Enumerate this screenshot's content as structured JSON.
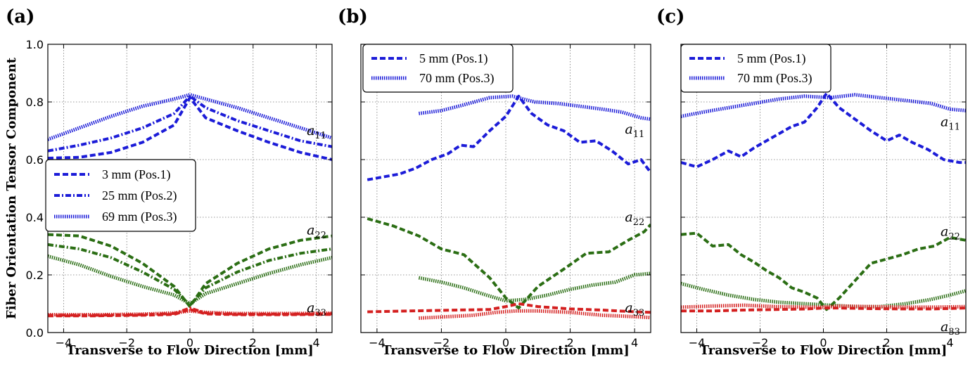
{
  "chart_data": [
    {
      "type": "line",
      "panel_label": "(a)",
      "xlabel": "Transverse to Flow Direction [mm]",
      "ylabel": "Fiber Orientation Tensor Component",
      "xlim": [
        -4.5,
        4.5
      ],
      "ylim": [
        0.0,
        1.0
      ],
      "xticks": [
        -4,
        -2,
        0,
        2,
        4
      ],
      "xtick_labels": [
        "−4",
        "−2",
        "0",
        "2",
        "4"
      ],
      "yticks": [
        0.0,
        0.2,
        0.4,
        0.6,
        0.8,
        1.0
      ],
      "ytick_labels": [
        "0.0",
        "0.2",
        "0.4",
        "0.6",
        "0.8",
        "1.0"
      ],
      "grid": true,
      "legend_position": "middle-left",
      "legend": [
        {
          "label": "3 mm (Pos.1)",
          "style": "dashed"
        },
        {
          "label": "25 mm (Pos.2)",
          "style": "dashdot"
        },
        {
          "label": "69 mm (Pos.3)",
          "style": "dotted"
        }
      ],
      "annotations": [
        {
          "base": "a",
          "sub": "11",
          "x": 3.7,
          "y": 0.7
        },
        {
          "base": "a",
          "sub": "22",
          "x": 3.7,
          "y": 0.355
        },
        {
          "base": "a",
          "sub": "33",
          "x": 3.7,
          "y": 0.085
        }
      ],
      "series": [
        {
          "component": "a11",
          "legend_index": 0,
          "color": "#1c1cd8",
          "style": "dashed",
          "x": [
            -4.5,
            -3.5,
            -2.5,
            -1.5,
            -0.5,
            0.0,
            0.5,
            1.5,
            2.5,
            3.5,
            4.5
          ],
          "y": [
            0.605,
            0.608,
            0.625,
            0.66,
            0.72,
            0.815,
            0.745,
            0.7,
            0.66,
            0.625,
            0.6
          ]
        },
        {
          "component": "a11",
          "legend_index": 1,
          "color": "#1c1cd8",
          "style": "dashdot",
          "x": [
            -4.5,
            -3.5,
            -2.5,
            -1.5,
            -0.5,
            0.0,
            0.5,
            1.5,
            2.5,
            3.5,
            4.5
          ],
          "y": [
            0.63,
            0.65,
            0.675,
            0.71,
            0.76,
            0.82,
            0.78,
            0.735,
            0.7,
            0.665,
            0.645
          ]
        },
        {
          "component": "a11",
          "legend_index": 2,
          "color": "#1c1cd8",
          "style": "dotted",
          "x": [
            -4.5,
            -3.5,
            -2.5,
            -1.5,
            -0.5,
            0.0,
            0.5,
            1.5,
            2.5,
            3.5,
            4.5
          ],
          "y": [
            0.67,
            0.71,
            0.75,
            0.785,
            0.81,
            0.825,
            0.81,
            0.78,
            0.745,
            0.71,
            0.675
          ]
        },
        {
          "component": "a22",
          "legend_index": 0,
          "color": "#2b6e14",
          "style": "dashed",
          "x": [
            -4.5,
            -3.5,
            -2.5,
            -1.5,
            -0.5,
            0.0,
            0.5,
            1.5,
            2.5,
            3.5,
            4.5
          ],
          "y": [
            0.34,
            0.335,
            0.3,
            0.24,
            0.16,
            0.09,
            0.17,
            0.24,
            0.29,
            0.32,
            0.335
          ]
        },
        {
          "component": "a22",
          "legend_index": 1,
          "color": "#2b6e14",
          "style": "dashdot",
          "x": [
            -4.5,
            -3.5,
            -2.5,
            -1.5,
            -0.5,
            0.0,
            0.5,
            1.5,
            2.5,
            3.5,
            4.5
          ],
          "y": [
            0.305,
            0.29,
            0.26,
            0.21,
            0.15,
            0.095,
            0.155,
            0.21,
            0.25,
            0.275,
            0.29
          ]
        },
        {
          "component": "a22",
          "legend_index": 2,
          "color": "#2b6e14",
          "style": "dotted",
          "x": [
            -4.5,
            -3.5,
            -2.5,
            -1.5,
            -0.5,
            0.0,
            0.5,
            1.5,
            2.5,
            3.5,
            4.5
          ],
          "y": [
            0.265,
            0.235,
            0.195,
            0.16,
            0.13,
            0.1,
            0.135,
            0.17,
            0.205,
            0.235,
            0.26
          ]
        },
        {
          "component": "a33",
          "legend_index": 0,
          "color": "#d42020",
          "style": "dashed",
          "x": [
            -4.5,
            -3.0,
            -1.5,
            -0.5,
            0.0,
            0.5,
            1.5,
            3.0,
            4.5
          ],
          "y": [
            0.058,
            0.058,
            0.06,
            0.063,
            0.08,
            0.065,
            0.062,
            0.062,
            0.063
          ]
        },
        {
          "component": "a33",
          "legend_index": 1,
          "color": "#d42020",
          "style": "dashdot",
          "x": [
            -4.5,
            -3.0,
            -1.5,
            -0.5,
            0.0,
            0.5,
            1.5,
            3.0,
            4.5
          ],
          "y": [
            0.06,
            0.06,
            0.062,
            0.066,
            0.085,
            0.068,
            0.064,
            0.064,
            0.065
          ]
        },
        {
          "component": "a33",
          "legend_index": 2,
          "color": "#d42020",
          "style": "dotted",
          "x": [
            -4.5,
            -3.0,
            -1.5,
            -0.5,
            0.0,
            0.5,
            1.5,
            3.0,
            4.5
          ],
          "y": [
            0.062,
            0.062,
            0.064,
            0.068,
            0.075,
            0.07,
            0.066,
            0.066,
            0.067
          ]
        }
      ]
    },
    {
      "type": "line",
      "panel_label": "(b)",
      "xlabel": "Transverse to Flow Direction [mm]",
      "ylabel": "",
      "xlim": [
        -4.5,
        4.5
      ],
      "ylim": [
        0.0,
        1.0
      ],
      "xticks": [
        -4,
        -2,
        0,
        2,
        4
      ],
      "xtick_labels": [
        "−4",
        "−2",
        "0",
        "2",
        "4"
      ],
      "yticks": [
        0.0,
        0.2,
        0.4,
        0.6,
        0.8,
        1.0
      ],
      "ytick_labels": [],
      "grid": true,
      "legend_position": "top-left",
      "legend": [
        {
          "label": "5 mm (Pos.1)",
          "style": "dashed"
        },
        {
          "label": "70 mm (Pos.3)",
          "style": "dotted"
        }
      ],
      "annotations": [
        {
          "base": "a",
          "sub": "11",
          "x": 3.7,
          "y": 0.705
        },
        {
          "base": "a",
          "sub": "22",
          "x": 3.7,
          "y": 0.4
        },
        {
          "base": "a",
          "sub": "33",
          "x": 3.7,
          "y": 0.085
        }
      ],
      "series": [
        {
          "component": "a11",
          "legend_index": 0,
          "color": "#1c1cd8",
          "style": "dashed",
          "x": [
            -4.3,
            -3.8,
            -3.3,
            -2.8,
            -2.3,
            -1.8,
            -1.4,
            -1.0,
            -0.5,
            0.0,
            0.4,
            0.8,
            1.3,
            1.8,
            2.3,
            2.8,
            3.3,
            3.8,
            4.2,
            4.5
          ],
          "y": [
            0.53,
            0.54,
            0.55,
            0.57,
            0.6,
            0.62,
            0.65,
            0.645,
            0.7,
            0.75,
            0.82,
            0.76,
            0.72,
            0.7,
            0.66,
            0.665,
            0.63,
            0.585,
            0.6,
            0.555
          ]
        },
        {
          "component": "a11",
          "legend_index": 1,
          "color": "#1c1cd8",
          "style": "dotted",
          "x": [
            -2.7,
            -2.0,
            -1.3,
            -0.5,
            0.2,
            0.9,
            1.6,
            2.3,
            3.0,
            3.6,
            4.2,
            4.5
          ],
          "y": [
            0.76,
            0.77,
            0.79,
            0.815,
            0.82,
            0.8,
            0.795,
            0.785,
            0.775,
            0.765,
            0.745,
            0.74
          ]
        },
        {
          "component": "a22",
          "legend_index": 0,
          "color": "#2b6e14",
          "style": "dashed",
          "x": [
            -4.3,
            -3.5,
            -2.7,
            -2.0,
            -1.3,
            -0.5,
            0.0,
            0.4,
            1.0,
            1.8,
            2.5,
            3.2,
            3.8,
            4.3,
            4.5
          ],
          "y": [
            0.395,
            0.37,
            0.335,
            0.29,
            0.27,
            0.19,
            0.12,
            0.085,
            0.16,
            0.22,
            0.275,
            0.28,
            0.32,
            0.35,
            0.375
          ]
        },
        {
          "component": "a22",
          "legend_index": 1,
          "color": "#2b6e14",
          "style": "dotted",
          "x": [
            -2.7,
            -2.0,
            -1.3,
            -0.6,
            0.0,
            0.6,
            1.3,
            2.0,
            2.7,
            3.4,
            4.0,
            4.5
          ],
          "y": [
            0.19,
            0.175,
            0.155,
            0.13,
            0.11,
            0.115,
            0.13,
            0.15,
            0.165,
            0.175,
            0.2,
            0.205
          ]
        },
        {
          "component": "a33",
          "legend_index": 0,
          "color": "#d42020",
          "style": "dashed",
          "x": [
            -4.3,
            -3.0,
            -1.5,
            -0.5,
            0.0,
            0.4,
            1.0,
            2.0,
            3.0,
            4.0,
            4.5
          ],
          "y": [
            0.072,
            0.075,
            0.078,
            0.08,
            0.09,
            0.1,
            0.09,
            0.082,
            0.078,
            0.072,
            0.07
          ]
        },
        {
          "component": "a33",
          "legend_index": 1,
          "color": "#d42020",
          "style": "dotted",
          "x": [
            -2.7,
            -1.8,
            -1.0,
            -0.3,
            0.3,
            1.0,
            2.0,
            3.0,
            4.0,
            4.5
          ],
          "y": [
            0.05,
            0.055,
            0.06,
            0.07,
            0.075,
            0.075,
            0.07,
            0.06,
            0.055,
            0.052
          ]
        }
      ]
    },
    {
      "type": "line",
      "panel_label": "(c)",
      "xlabel": "Transverse to Flow Direction [mm]",
      "ylabel": "",
      "xlim": [
        -4.5,
        4.5
      ],
      "ylim": [
        0.0,
        1.0
      ],
      "xticks": [
        -4,
        -2,
        0,
        2,
        4
      ],
      "xtick_labels": [
        "−4",
        "−2",
        "0",
        "2",
        "4"
      ],
      "yticks": [
        0.0,
        0.2,
        0.4,
        0.6,
        0.8,
        1.0
      ],
      "ytick_labels": [],
      "grid": true,
      "legend_position": "top-left",
      "legend": [
        {
          "label": "5 mm (Pos.1)",
          "style": "dashed"
        },
        {
          "label": "70 mm (Pos.3)",
          "style": "dotted"
        }
      ],
      "annotations": [
        {
          "base": "a",
          "sub": "11",
          "x": 3.7,
          "y": 0.73
        },
        {
          "base": "a",
          "sub": "22",
          "x": 3.7,
          "y": 0.35
        },
        {
          "base": "a",
          "sub": "33",
          "x": 3.7,
          "y": 0.02
        }
      ],
      "series": [
        {
          "component": "a11",
          "legend_index": 0,
          "color": "#1c1cd8",
          "style": "dashed",
          "x": [
            -4.5,
            -4.0,
            -3.5,
            -3.0,
            -2.6,
            -2.2,
            -1.8,
            -1.4,
            -1.0,
            -0.6,
            -0.2,
            0.1,
            0.5,
            1.0,
            1.5,
            2.0,
            2.4,
            2.8,
            3.3,
            3.8,
            4.3,
            4.5
          ],
          "y": [
            0.59,
            0.575,
            0.6,
            0.63,
            0.61,
            0.64,
            0.665,
            0.69,
            0.715,
            0.73,
            0.78,
            0.83,
            0.78,
            0.74,
            0.7,
            0.665,
            0.685,
            0.66,
            0.635,
            0.6,
            0.59,
            0.59
          ]
        },
        {
          "component": "a11",
          "legend_index": 1,
          "color": "#1c1cd8",
          "style": "dotted",
          "x": [
            -4.5,
            -3.8,
            -3.0,
            -2.2,
            -1.4,
            -0.6,
            0.2,
            1.0,
            1.8,
            2.6,
            3.4,
            4.0,
            4.5
          ],
          "y": [
            0.75,
            0.765,
            0.78,
            0.795,
            0.81,
            0.82,
            0.815,
            0.825,
            0.815,
            0.805,
            0.795,
            0.775,
            0.77
          ]
        },
        {
          "component": "a22",
          "legend_index": 0,
          "color": "#2b6e14",
          "style": "dashed",
          "x": [
            -4.5,
            -4.0,
            -3.5,
            -3.0,
            -2.6,
            -2.2,
            -1.8,
            -1.4,
            -1.0,
            -0.6,
            -0.2,
            0.1,
            0.5,
            1.0,
            1.5,
            2.0,
            2.5,
            3.0,
            3.5,
            4.0,
            4.5
          ],
          "y": [
            0.34,
            0.345,
            0.3,
            0.305,
            0.27,
            0.245,
            0.215,
            0.19,
            0.155,
            0.14,
            0.12,
            0.08,
            0.12,
            0.18,
            0.24,
            0.255,
            0.27,
            0.29,
            0.3,
            0.33,
            0.32
          ]
        },
        {
          "component": "a22",
          "legend_index": 1,
          "color": "#2b6e14",
          "style": "dotted",
          "x": [
            -4.5,
            -3.8,
            -3.0,
            -2.2,
            -1.4,
            -0.6,
            0.2,
            1.0,
            1.8,
            2.6,
            3.4,
            4.0,
            4.5
          ],
          "y": [
            0.17,
            0.15,
            0.13,
            0.115,
            0.105,
            0.1,
            0.095,
            0.09,
            0.09,
            0.1,
            0.115,
            0.13,
            0.145
          ]
        },
        {
          "component": "a33",
          "legend_index": 0,
          "color": "#d42020",
          "style": "dashed",
          "x": [
            -4.5,
            -3.5,
            -2.5,
            -1.5,
            -0.5,
            0.0,
            0.5,
            1.5,
            2.5,
            3.5,
            4.5
          ],
          "y": [
            0.075,
            0.075,
            0.078,
            0.08,
            0.082,
            0.085,
            0.085,
            0.083,
            0.082,
            0.082,
            0.085
          ]
        },
        {
          "component": "a33",
          "legend_index": 1,
          "color": "#d42020",
          "style": "dotted",
          "x": [
            -4.5,
            -3.5,
            -2.5,
            -1.5,
            -0.5,
            0.0,
            0.5,
            1.5,
            2.5,
            3.5,
            4.5
          ],
          "y": [
            0.088,
            0.092,
            0.095,
            0.09,
            0.088,
            0.088,
            0.092,
            0.09,
            0.088,
            0.088,
            0.09
          ]
        }
      ]
    }
  ]
}
